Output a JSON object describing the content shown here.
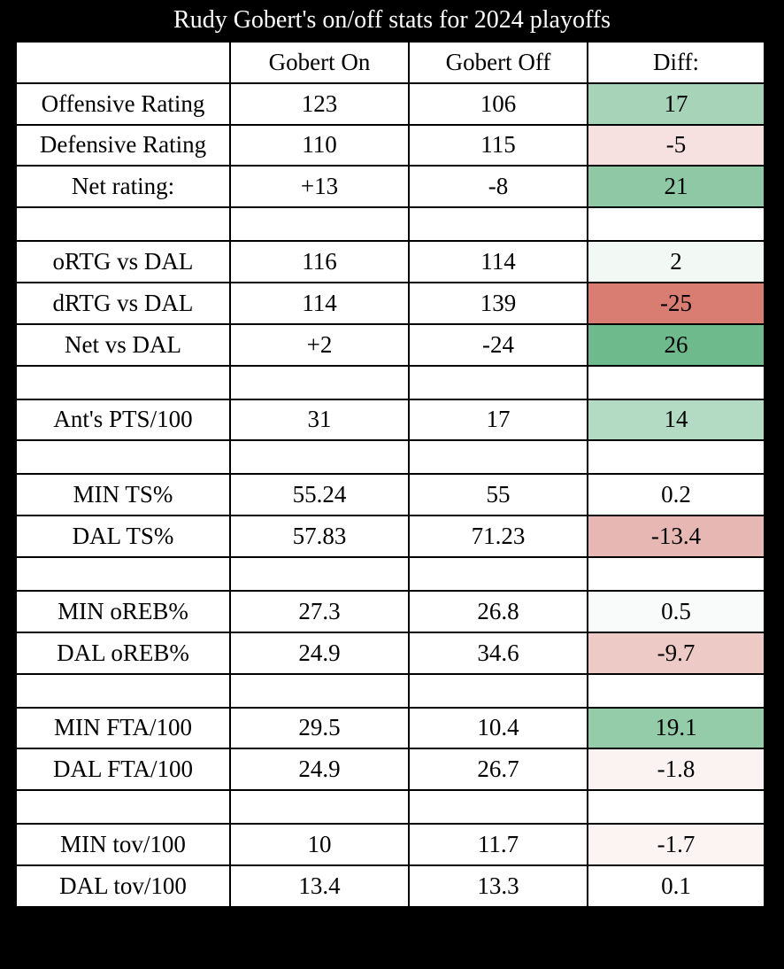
{
  "title": "Rudy Gobert's on/off stats for 2024 playoffs",
  "chart_data": {
    "type": "table",
    "title": "Rudy Gobert's on/off stats for 2024 playoffs",
    "columns": [
      "",
      "Gobert On",
      "Gobert Off",
      "Diff:"
    ],
    "rows": [
      {
        "kind": "data",
        "label": "Offensive Rating",
        "on": "123",
        "off": "106",
        "diff": "17",
        "diff_color": "#a7d3b9"
      },
      {
        "kind": "data",
        "label": "Defensive Rating",
        "on": "110",
        "off": "115",
        "diff": "-5",
        "diff_color": "#f6e1e0"
      },
      {
        "kind": "data",
        "label": "Net rating:",
        "on": "+13",
        "off": "-8",
        "diff": "21",
        "diff_color": "#8fc8a4"
      },
      {
        "kind": "spacer"
      },
      {
        "kind": "data",
        "label": "oRTG vs DAL",
        "on": "116",
        "off": "114",
        "diff": "2",
        "diff_color": "#f2f8f4"
      },
      {
        "kind": "data",
        "label": "dRTG vs DAL",
        "on": "114",
        "off": "139",
        "diff": "-25",
        "diff_color": "#d97c72"
      },
      {
        "kind": "data",
        "label": "Net vs DAL",
        "on": "+2",
        "off": "-24",
        "diff": "26",
        "diff_color": "#6fba8c"
      },
      {
        "kind": "spacer"
      },
      {
        "kind": "data",
        "label": "Ant's PTS/100",
        "on": "31",
        "off": "17",
        "diff": "14",
        "diff_color": "#b3dac3"
      },
      {
        "kind": "spacer"
      },
      {
        "kind": "data",
        "label": "MIN TS%",
        "on": "55.24",
        "off": "55",
        "diff": "0.2",
        "diff_color": "#ffffff"
      },
      {
        "kind": "data",
        "label": "DAL TS%",
        "on": "57.83",
        "off": "71.23",
        "diff": "-13.4",
        "diff_color": "#e7b8b3"
      },
      {
        "kind": "spacer"
      },
      {
        "kind": "data",
        "label": "MIN oREB%",
        "on": "27.3",
        "off": "26.8",
        "diff": "0.5",
        "diff_color": "#f8fbf9"
      },
      {
        "kind": "data",
        "label": "DAL oREB%",
        "on": "24.9",
        "off": "34.6",
        "diff": "-9.7",
        "diff_color": "#eecac6"
      },
      {
        "kind": "spacer"
      },
      {
        "kind": "data",
        "label": "MIN FTA/100",
        "on": "29.5",
        "off": "10.4",
        "diff": "19.1",
        "diff_color": "#94cba8"
      },
      {
        "kind": "data",
        "label": "DAL FTA/100",
        "on": "24.9",
        "off": "26.7",
        "diff": "-1.8",
        "diff_color": "#fbf3f1"
      },
      {
        "kind": "spacer"
      },
      {
        "kind": "data",
        "label": "MIN tov/100",
        "on": "10",
        "off": "11.7",
        "diff": "-1.7",
        "diff_color": "#fcf4f2"
      },
      {
        "kind": "data",
        "label": "DAL tov/100",
        "on": "13.4",
        "off": "13.3",
        "diff": "0.1",
        "diff_color": "#ffffff"
      }
    ]
  }
}
